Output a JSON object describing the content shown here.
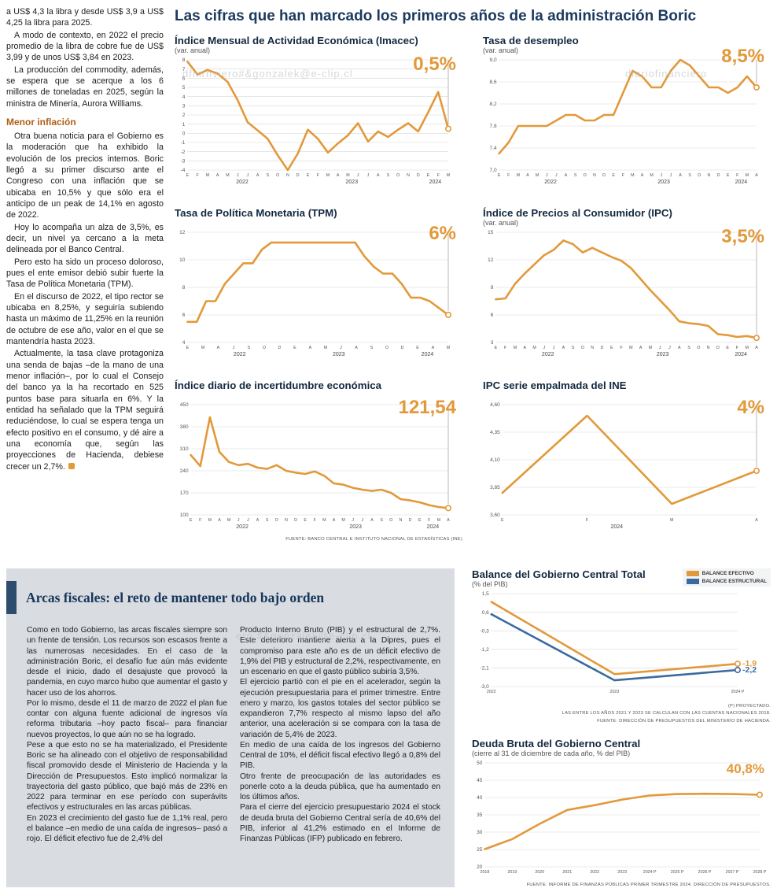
{
  "page": {
    "header_title": "Las cifras que han marcado los primeros años de la administración Boric"
  },
  "colors": {
    "accent_orange": "#E2993A",
    "accent_blue": "#3A6B9F",
    "headline_navy": "#1B3A5E",
    "panel_gray": "#D9DCE1"
  },
  "watermarks": {
    "wm1": "dfmrnviero#&gonzalek@e-clip.cl",
    "wm2": "diariofinanciero",
    "wm3": "ero.#&gonzalek@e-clip.cl"
  },
  "article": {
    "paragraphs_before": [
      "a US$ 4,3 la libra y desde US$ 3,9 a US$ 4,25 la libra para 2025.",
      "A modo de contexto, en 2022 el precio promedio de la libra de cobre fue de US$ 3,99 y de unos US$ 3,84 en 2023.",
      "La producción del commodity, además, se espera que se acerque a los 6 millones de toneladas en 2025, según la ministra de Minería, Aurora Williams."
    ],
    "subhead": "Menor inflación",
    "paragraphs_after": [
      "Otra buena noticia para el Gobierno es la moderación que ha exhibido la evolución de los precios internos. Boric llegó a su primer discurso ante el Congreso con una inflación que se ubicaba en 10,5% y que sólo era el anticipo de un peak de 14,1% en agosto de 2022.",
      "Hoy lo acompaña un alza de 3,5%, es decir, un nivel ya cercano a la meta delineada por el Banco Central.",
      "Pero esto ha sido un proceso doloroso, pues el ente emisor debió subir fuerte la Tasa de Política Monetaria (TPM).",
      "En el discurso de 2022, el tipo rector se ubicaba en 8,25%, y seguiría subiendo hasta un máximo de 11,25% en la reunión de octubre de ese año, valor en el que se mantendría hasta 2023.",
      "Actualmente, la tasa clave protagoniza una senda de bajas –de la mano de una menor inflación–, por lo cual el Consejo del banco ya la ha recortado en 525 puntos base para situarla en 6%. Y la entidad ha señalado que la TPM seguirá reduciéndose, lo cual se espera tenga un efecto positivo en el consumo, y dé aire a una economía que, según las proyecciones de Hacienda, debiese crecer un 2,7%."
    ]
  },
  "fiscal": {
    "title": "Arcas fiscales: el reto de mantener todo bajo orden",
    "col1": [
      "Como en todo Gobierno, las arcas fiscales siempre son un frente de tensión. Los recursos son escasos frente a las numerosas necesidades. En el caso de la administración Boric, el desafío fue aún más evidente desde el inicio, dado el desajuste que provocó la pandemia, en cuyo marco hubo que aumentar el gasto y hacer uso de los ahorros.",
      "Por lo mismo, desde el 11 de marzo de 2022 el plan fue contar con alguna fuente adicional de ingresos vía reforma tributaria –hoy pacto fiscal– para financiar nuevos proyectos, lo que aún no se ha logrado.",
      "Pese a que esto no se ha materializado, el Presidente Boric se ha alineado con el objetivo de responsabilidad fiscal promovido desde el Ministerio de Hacienda y la Dirección de Presupuestos. Esto implicó normalizar la trayectoria del gasto público, que bajó más de 23% en 2022 para terminar en ese período con superávits efectivos y estructurales en las arcas públicas.",
      "En 2023 el crecimiento del gasto fue de 1,1% real, pero el balance –en medio de una caída de ingresos– pasó a rojo. El déficit efectivo fue de 2,4% del"
    ],
    "col2": [
      "Producto Interno Bruto (PIB) y el estructural de 2,7%. Este deterioro mantiene alerta a la Dipres, pues el compromiso para este año es de un déficit efectivo de 1,9% del PIB y estructural de 2,2%, respectivamente, en un escenario en que el gasto público subiría 3,5%.",
      "El ejercicio partió con el pie en el acelerador, según la ejecución presupuestaria para el primer trimestre. Entre enero y marzo, los gastos totales del sector público se expandieron 7,7% respecto al mismo lapso del año anterior, una aceleración si se compara con la tasa de variación de 5,4% de 2023.",
      "En medio de una caída de los ingresos del Gobierno Central de 10%, el déficit fiscal efectivo llegó a 0,8% del PIB.",
      "Otro frente de preocupación de las autoridades es ponerle coto a la deuda pública, que ha aumentado en los últimos años.",
      "Para el cierre del ejercicio presupuestario 2024 el stock de deuda bruta del Gobierno Central sería de 40,6% del PIB, inferior al 41,2% estimado en el Informe de Finanzas Públicas (IFP) publicado en febrero."
    ]
  },
  "chart_data": [
    {
      "id": "imacec",
      "type": "line",
      "slot": "top",
      "title": "Índice Mensual de Actividad Económica (Imacec)",
      "subtitle": "(var. anual)",
      "value": "0,5%",
      "value_size": 24,
      "value_top": 24,
      "ymin": -4,
      "ymax": 8,
      "yticks": [
        8,
        7,
        6,
        5,
        4,
        3,
        2,
        1,
        0,
        -1,
        -2,
        -3,
        -4
      ],
      "ytick_labels": [
        "8",
        "7",
        "6",
        "5",
        "4",
        "3",
        "2",
        "1",
        "0",
        "-1",
        "-2",
        "-3",
        "-4"
      ],
      "xlabels": [
        "E",
        "F",
        "M",
        "A",
        "M",
        "J",
        "J",
        "A",
        "S",
        "O",
        "N",
        "D",
        "E",
        "F",
        "M",
        "A",
        "M",
        "J",
        "J",
        "A",
        "S",
        "O",
        "N",
        "D",
        "E",
        "F",
        "M"
      ],
      "years": [
        {
          "label": "2022",
          "f": 0.21
        },
        {
          "label": "2023",
          "f": 0.63
        },
        {
          "label": "2024",
          "f": 0.95
        }
      ],
      "endline": true,
      "series": [
        {
          "name": "Imacec",
          "color": "#E2993A",
          "marker": true,
          "values": [
            7.8,
            6.4,
            6.9,
            6.5,
            5.6,
            3.6,
            1.2,
            0.3,
            -0.6,
            -2.4,
            -4.0,
            -2.2,
            0.4,
            -0.6,
            -2.1,
            -1.1,
            -0.2,
            1.1,
            -0.9,
            0.2,
            -0.4,
            0.4,
            1.1,
            0.2,
            2.3,
            4.5,
            0.5
          ]
        }
      ]
    },
    {
      "id": "desempleo",
      "type": "line",
      "slot": "top",
      "title": "Tasa de desempleo",
      "subtitle": "(var. anual)",
      "value": "8,5%",
      "value_size": 24,
      "value_top": 14,
      "ymin": 7.0,
      "ymax": 9.0,
      "yticks": [
        9.0,
        8.6,
        8.2,
        7.8,
        7.4,
        7.0
      ],
      "ytick_labels": [
        "9,0",
        "8,6",
        "8,2",
        "7,8",
        "7,4",
        "7,0"
      ],
      "xlabels": [
        "E",
        "F",
        "M",
        "A",
        "M",
        "J",
        "J",
        "A",
        "S",
        "O",
        "N",
        "D",
        "E",
        "F",
        "M",
        "A",
        "M",
        "J",
        "J",
        "A",
        "S",
        "O",
        "N",
        "D",
        "E",
        "F",
        "M",
        "A"
      ],
      "years": [
        {
          "label": "2022",
          "f": 0.2
        },
        {
          "label": "2023",
          "f": 0.64
        },
        {
          "label": "2024",
          "f": 0.94
        }
      ],
      "endline": true,
      "series": [
        {
          "name": "Tasa de desempleo",
          "color": "#E2993A",
          "marker": true,
          "values": [
            7.3,
            7.5,
            7.8,
            7.8,
            7.8,
            7.8,
            7.9,
            8.0,
            8.0,
            7.9,
            7.9,
            8.0,
            8.0,
            8.4,
            8.8,
            8.7,
            8.5,
            8.5,
            8.8,
            9.0,
            8.9,
            8.7,
            8.5,
            8.5,
            8.4,
            8.5,
            8.7,
            8.5
          ]
        }
      ]
    },
    {
      "id": "tpm",
      "type": "line",
      "slot": "top",
      "title": "Tasa de Política Monetaria (TPM)",
      "subtitle": "",
      "value": "6%",
      "value_size": 24,
      "value_top": 20,
      "ymin": 4,
      "ymax": 12,
      "yticks": [
        12,
        10,
        8,
        6,
        4
      ],
      "ytick_labels": [
        "12",
        "10",
        "8",
        "6",
        "4"
      ],
      "xlabels": [
        "E",
        "M",
        "A",
        "J",
        "S",
        "O",
        "D",
        "E",
        "A",
        "M",
        "J",
        "A",
        "S",
        "O",
        "D",
        "E",
        "A",
        "M"
      ],
      "years": [
        {
          "label": "2022",
          "f": 0.2
        },
        {
          "label": "2023",
          "f": 0.58
        },
        {
          "label": "2024",
          "f": 0.92
        }
      ],
      "endline": true,
      "series": [
        {
          "name": "TPM",
          "color": "#E2993A",
          "marker": true,
          "values": [
            5.5,
            5.5,
            7.0,
            7.0,
            8.25,
            9.0,
            9.75,
            9.75,
            10.75,
            11.25,
            11.25,
            11.25,
            11.25,
            11.25,
            11.25,
            11.25,
            11.25,
            11.25,
            11.25,
            10.25,
            9.5,
            9.0,
            9.0,
            8.25,
            7.25,
            7.25,
            7.0,
            6.5,
            6.0
          ]
        }
      ]
    },
    {
      "id": "ipc",
      "type": "line",
      "slot": "top",
      "title": "Índice de Precios al Consumidor (IPC)",
      "subtitle": "(var. anual)",
      "value": "3,5%",
      "value_size": 24,
      "value_top": 24,
      "ymin": 3,
      "ymax": 15,
      "yticks": [
        15,
        12,
        9,
        6,
        3
      ],
      "ytick_labels": [
        "15",
        "12",
        "9",
        "6",
        "3"
      ],
      "xlabels": [
        "E",
        "F",
        "M",
        "A",
        "M",
        "J",
        "J",
        "A",
        "S",
        "O",
        "N",
        "D",
        "E",
        "F",
        "M",
        "A",
        "M",
        "J",
        "J",
        "A",
        "S",
        "O",
        "N",
        "D",
        "E",
        "F",
        "M",
        "A"
      ],
      "years": [
        {
          "label": "2022",
          "f": 0.2
        },
        {
          "label": "2023",
          "f": 0.64
        },
        {
          "label": "2024",
          "f": 0.94
        }
      ],
      "endline": true,
      "series": [
        {
          "name": "IPC",
          "color": "#E2993A",
          "marker": true,
          "values": [
            7.7,
            7.8,
            9.4,
            10.5,
            11.5,
            12.5,
            13.1,
            14.1,
            13.7,
            12.8,
            13.3,
            12.8,
            12.3,
            11.9,
            11.1,
            9.9,
            8.7,
            7.6,
            6.5,
            5.3,
            5.1,
            5.0,
            4.8,
            3.9,
            3.8,
            3.6,
            3.7,
            3.5
          ]
        }
      ]
    },
    {
      "id": "incertidumbre",
      "type": "line",
      "slot": "top",
      "title": "Índice diario de incertidumbre económica",
      "subtitle": "",
      "value": "121,54",
      "value_size": 24,
      "value_top": 22,
      "ymin": 100,
      "ymax": 450,
      "yticks": [
        450,
        380,
        310,
        240,
        170,
        100
      ],
      "ytick_labels": [
        "450",
        "380",
        "310",
        "240",
        "170",
        "100"
      ],
      "xlabels": [
        "E",
        "F",
        "M",
        "A",
        "M",
        "J",
        "J",
        "A",
        "S",
        "O",
        "N",
        "D",
        "E",
        "F",
        "M",
        "A",
        "M",
        "J",
        "J",
        "A",
        "S",
        "O",
        "N",
        "D",
        "E",
        "F",
        "M",
        "A"
      ],
      "years": [
        {
          "label": "2022",
          "f": 0.2
        },
        {
          "label": "2023",
          "f": 0.64
        },
        {
          "label": "2024",
          "f": 0.94
        }
      ],
      "endline": true,
      "source": "FUENTE: BANCO CENTRAL E INSTITUTO NACIONAL DE ESTADÍSTICAS (INE)",
      "series": [
        {
          "name": "Incertidumbre económica",
          "color": "#E2993A",
          "marker": true,
          "values": [
            290,
            255,
            410,
            300,
            268,
            258,
            262,
            250,
            246,
            258,
            240,
            234,
            230,
            238,
            224,
            200,
            196,
            186,
            180,
            176,
            180,
            170,
            150,
            146,
            140,
            131,
            125,
            121.54
          ]
        }
      ]
    },
    {
      "id": "ipc-ine",
      "type": "line",
      "slot": "top",
      "title": "IPC serie empalmada del INE",
      "subtitle": "",
      "value": "4%",
      "value_size": 24,
      "value_top": 22,
      "ymin": 3.6,
      "ymax": 4.6,
      "yticks": [
        4.6,
        4.35,
        4.1,
        3.85,
        3.6
      ],
      "ytick_labels": [
        "4,60",
        "4,35",
        "4,10",
        "3,85",
        "3,60"
      ],
      "xlabels": [
        "E",
        "F",
        "M",
        "A"
      ],
      "years": [
        {
          "label": "2024",
          "f": 0.45
        }
      ],
      "endline": true,
      "series": [
        {
          "name": "IPC serie empalmada",
          "color": "#E2993A",
          "marker": true,
          "values": [
            3.8,
            4.5,
            3.7,
            4.0
          ]
        }
      ]
    },
    {
      "id": "balance",
      "type": "line",
      "slot": "bottom",
      "title": "Balance del Gobierno Central Total",
      "subtitle": "(% del PIB)",
      "ymin": -3.0,
      "ymax": 1.5,
      "yticks": [
        1.5,
        0.6,
        -0.3,
        -1.2,
        -2.1,
        -3.0
      ],
      "ytick_labels": [
        "1,5",
        "0,6",
        "-0,3",
        "-1,2",
        "-2,1",
        "-3,0"
      ],
      "xlabels": [
        "2022",
        "2023",
        "2024 P"
      ],
      "legend": [
        {
          "label": "BALANCE EFECTIVO",
          "color": "#E2993A"
        },
        {
          "label": "BALANCE ESTRUCTURAL",
          "color": "#3A6B9F"
        }
      ],
      "footnotes": [
        "(P) PROYECTADO.",
        "LAS ENTRE LOS AÑOS 2021 Y 2023 SE CALCULAN  CON LAS CUENTAS NACIONALES 2018.",
        "FUENTE: DIRECCIÓN DE PRESUPUESTOS DEL MINISTERIO DE HACIENDA."
      ],
      "series": [
        {
          "name": "Balance efectivo",
          "color": "#E2993A",
          "marker": true,
          "end_label": "-1,9",
          "values": [
            1.1,
            -2.4,
            -1.9
          ]
        },
        {
          "name": "Balance estructural",
          "color": "#3A6B9F",
          "marker": true,
          "end_label": "-2,2",
          "values": [
            0.5,
            -2.7,
            -2.2
          ]
        }
      ]
    },
    {
      "id": "deuda",
      "type": "line",
      "slot": "bottom",
      "title": "Deuda Bruta del Gobierno Central",
      "subtitle": "(cierre al 31 de diciembre de cada año, % del PIB)",
      "value": "40,8%",
      "value_size": 17,
      "value_top": 30,
      "ymin": 20,
      "ymax": 50,
      "yticks": [
        50,
        45,
        40,
        35,
        30,
        25,
        20
      ],
      "ytick_labels": [
        "50",
        "45",
        "40",
        "35",
        "30",
        "25",
        "20"
      ],
      "xlabels": [
        "2018",
        "2019",
        "2020",
        "2021",
        "2022",
        "2023",
        "2024 P",
        "2025 P",
        "2026 P",
        "2027 P",
        "2028 P"
      ],
      "source": "FUENTE: INFORME DE FINANZAS PÚBLICAS PRIMER TRIMESTRE 2024, DIRECCIÓN DE PRESUPUESTOS.",
      "series": [
        {
          "name": "Deuda bruta",
          "color": "#E2993A",
          "marker": true,
          "values": [
            25.1,
            28.0,
            32.4,
            36.4,
            37.8,
            39.4,
            40.6,
            41.0,
            41.1,
            41.0,
            40.8
          ]
        }
      ]
    }
  ]
}
